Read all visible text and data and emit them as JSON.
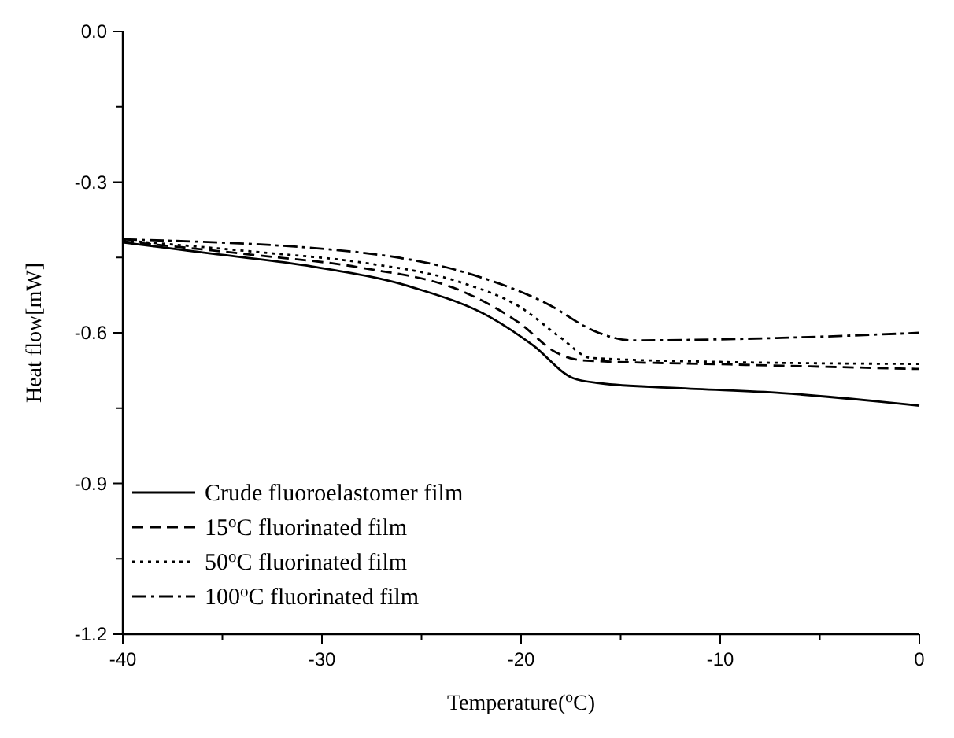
{
  "chart_data": {
    "type": "line",
    "xlabel": "Temperature($^{o}$C)",
    "ylabel": "Heat flow[mW]",
    "xlim": [
      -40,
      0
    ],
    "ylim": [
      -1.2,
      0
    ],
    "xticks": [
      -40,
      {
        "value": -35,
        "label": null
      },
      -30,
      {
        "value": -25,
        "label": null
      },
      -20,
      {
        "value": -15,
        "label": null
      },
      -10,
      {
        "value": -5,
        "label": null
      },
      0
    ],
    "yticks": [
      {
        "value": -1.2,
        "label": "-1.2"
      },
      {
        "value": -1.05,
        "label": null
      },
      {
        "value": -0.9,
        "label": "-0.9"
      },
      {
        "value": -0.75,
        "label": null
      },
      {
        "value": -0.6,
        "label": "-0.6"
      },
      {
        "value": -0.45,
        "label": null
      },
      {
        "value": -0.3,
        "label": "-0.3"
      },
      {
        "value": -0.15,
        "label": null
      },
      {
        "value": 0,
        "label": "0.0"
      }
    ],
    "legend": "bottom left",
    "grid": false,
    "series": [
      {
        "name": "Crude fluoroelastomer film",
        "color": "#000000",
        "line_style": "solid",
        "x": [
          -40,
          -36,
          -30.8,
          -25.4,
          -21.5,
          -19.4,
          -17.4,
          -16.1,
          -12.2,
          -6.9,
          0
        ],
        "values": [
          -0.42,
          -0.44,
          -0.466,
          -0.51,
          -0.57,
          -0.625,
          -0.69,
          -0.7,
          -0.71,
          -0.72,
          -0.745
        ]
      },
      {
        "name": "15$^{o}$C fluorinated film",
        "color": "#000000",
        "line_style": "dashed",
        "x": [
          -40,
          -33.4,
          -28.1,
          -22.8,
          -20.1,
          -18.2,
          -16.9,
          -9.5,
          0
        ],
        "values": [
          -0.418,
          -0.445,
          -0.47,
          -0.52,
          -0.58,
          -0.64,
          -0.655,
          -0.663,
          -0.672
        ]
      },
      {
        "name": "50$^{o}$C fluorinated film",
        "color": "#000000",
        "line_style": "dotted",
        "x": [
          -40,
          -33,
          -28,
          -23,
          -20,
          -18,
          -16.5,
          -10,
          0
        ],
        "values": [
          -0.416,
          -0.44,
          -0.46,
          -0.5,
          -0.55,
          -0.61,
          -0.65,
          -0.658,
          -0.662
        ]
      },
      {
        "name": "100$^{o}$C fluorinated film",
        "color": "#000000",
        "line_style": "dashdot",
        "x": [
          -40,
          -28.1,
          -22.8,
          -18.8,
          -16.1,
          -14.5,
          -6.9,
          0
        ],
        "values": [
          -0.414,
          -0.44,
          -0.48,
          -0.54,
          -0.6,
          -0.615,
          -0.61,
          -0.6
        ]
      }
    ]
  }
}
